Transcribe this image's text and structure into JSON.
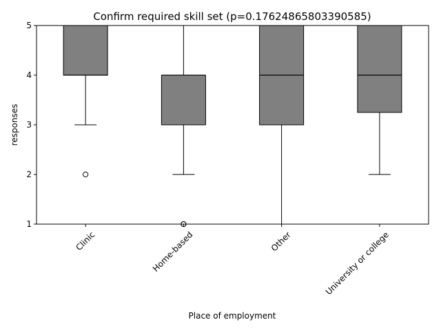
{
  "chart_data": {
    "type": "box",
    "title": "Confirm required skill set (p=0.17624865803390585)",
    "xlabel": "Place of employment",
    "ylabel": "responses",
    "ylim": [
      1,
      5
    ],
    "yticks": [
      "1",
      "2",
      "3",
      "4",
      "5"
    ],
    "categories": [
      "Clinic",
      "Home-based",
      "Other",
      "University or college"
    ],
    "boxes": [
      {
        "whislo": 3,
        "q1": 4,
        "median": 4,
        "q3": 5,
        "whishi": 5,
        "fliers": [
          2
        ]
      },
      {
        "whislo": 2,
        "q1": 3,
        "median": 4,
        "q3": 4,
        "whishi": 5,
        "fliers": [
          1,
          1
        ]
      },
      {
        "whislo": 1,
        "q1": 3,
        "median": 4,
        "q3": 5,
        "whishi": 5,
        "fliers": []
      },
      {
        "whislo": 2,
        "q1": 3.25,
        "median": 4,
        "q3": 5,
        "whishi": 5,
        "fliers": []
      }
    ],
    "colors": {
      "box_fill": "#808080",
      "line": "#000000"
    },
    "grid": false
  }
}
